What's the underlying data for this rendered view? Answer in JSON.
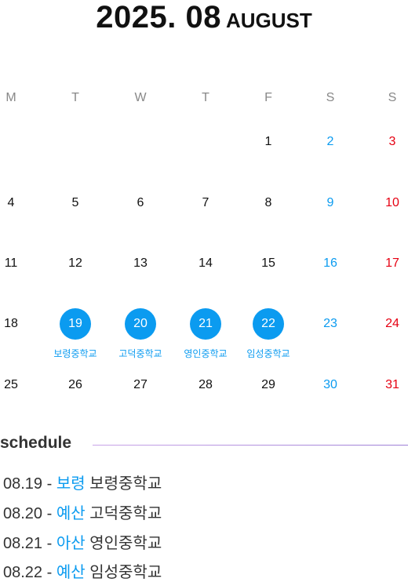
{
  "header": {
    "year_month": "2025. 08",
    "month_name": "AUGUST"
  },
  "weekdays": [
    "M",
    "T",
    "W",
    "T",
    "F",
    "S",
    "S"
  ],
  "weeks": [
    [
      null,
      null,
      null,
      null,
      {
        "day": 1
      },
      {
        "day": 2
      },
      {
        "day": 3
      }
    ],
    [
      {
        "day": 4
      },
      {
        "day": 5
      },
      {
        "day": 6
      },
      {
        "day": 7
      },
      {
        "day": 8
      },
      {
        "day": 9
      },
      {
        "day": 10
      }
    ],
    [
      {
        "day": 11
      },
      {
        "day": 12
      },
      {
        "day": 13
      },
      {
        "day": 14
      },
      {
        "day": 15
      },
      {
        "day": 16
      },
      {
        "day": 17
      }
    ],
    [
      {
        "day": 18
      },
      {
        "day": 19,
        "event": "보령중학교"
      },
      {
        "day": 20,
        "event": "고덕중학교"
      },
      {
        "day": 21,
        "event": "영인중학교"
      },
      {
        "day": 22,
        "event": "임성중학교"
      },
      {
        "day": 23
      },
      {
        "day": 24
      }
    ],
    [
      {
        "day": 25
      },
      {
        "day": 26
      },
      {
        "day": 27
      },
      {
        "day": 28
      },
      {
        "day": 29
      },
      {
        "day": 30
      },
      {
        "day": 31
      }
    ]
  ],
  "schedule": {
    "title": "schedule",
    "items": [
      {
        "date": "08.19",
        "dash": "-",
        "city": "보령",
        "school": "보령중학교"
      },
      {
        "date": "08.20",
        "dash": "-",
        "city": "예산",
        "school": "고덕중학교"
      },
      {
        "date": "08.21",
        "dash": "-",
        "city": "아산",
        "school": "영인중학교"
      },
      {
        "date": "08.22",
        "dash": "-",
        "city": "예산",
        "school": "임성중학교"
      }
    ]
  }
}
